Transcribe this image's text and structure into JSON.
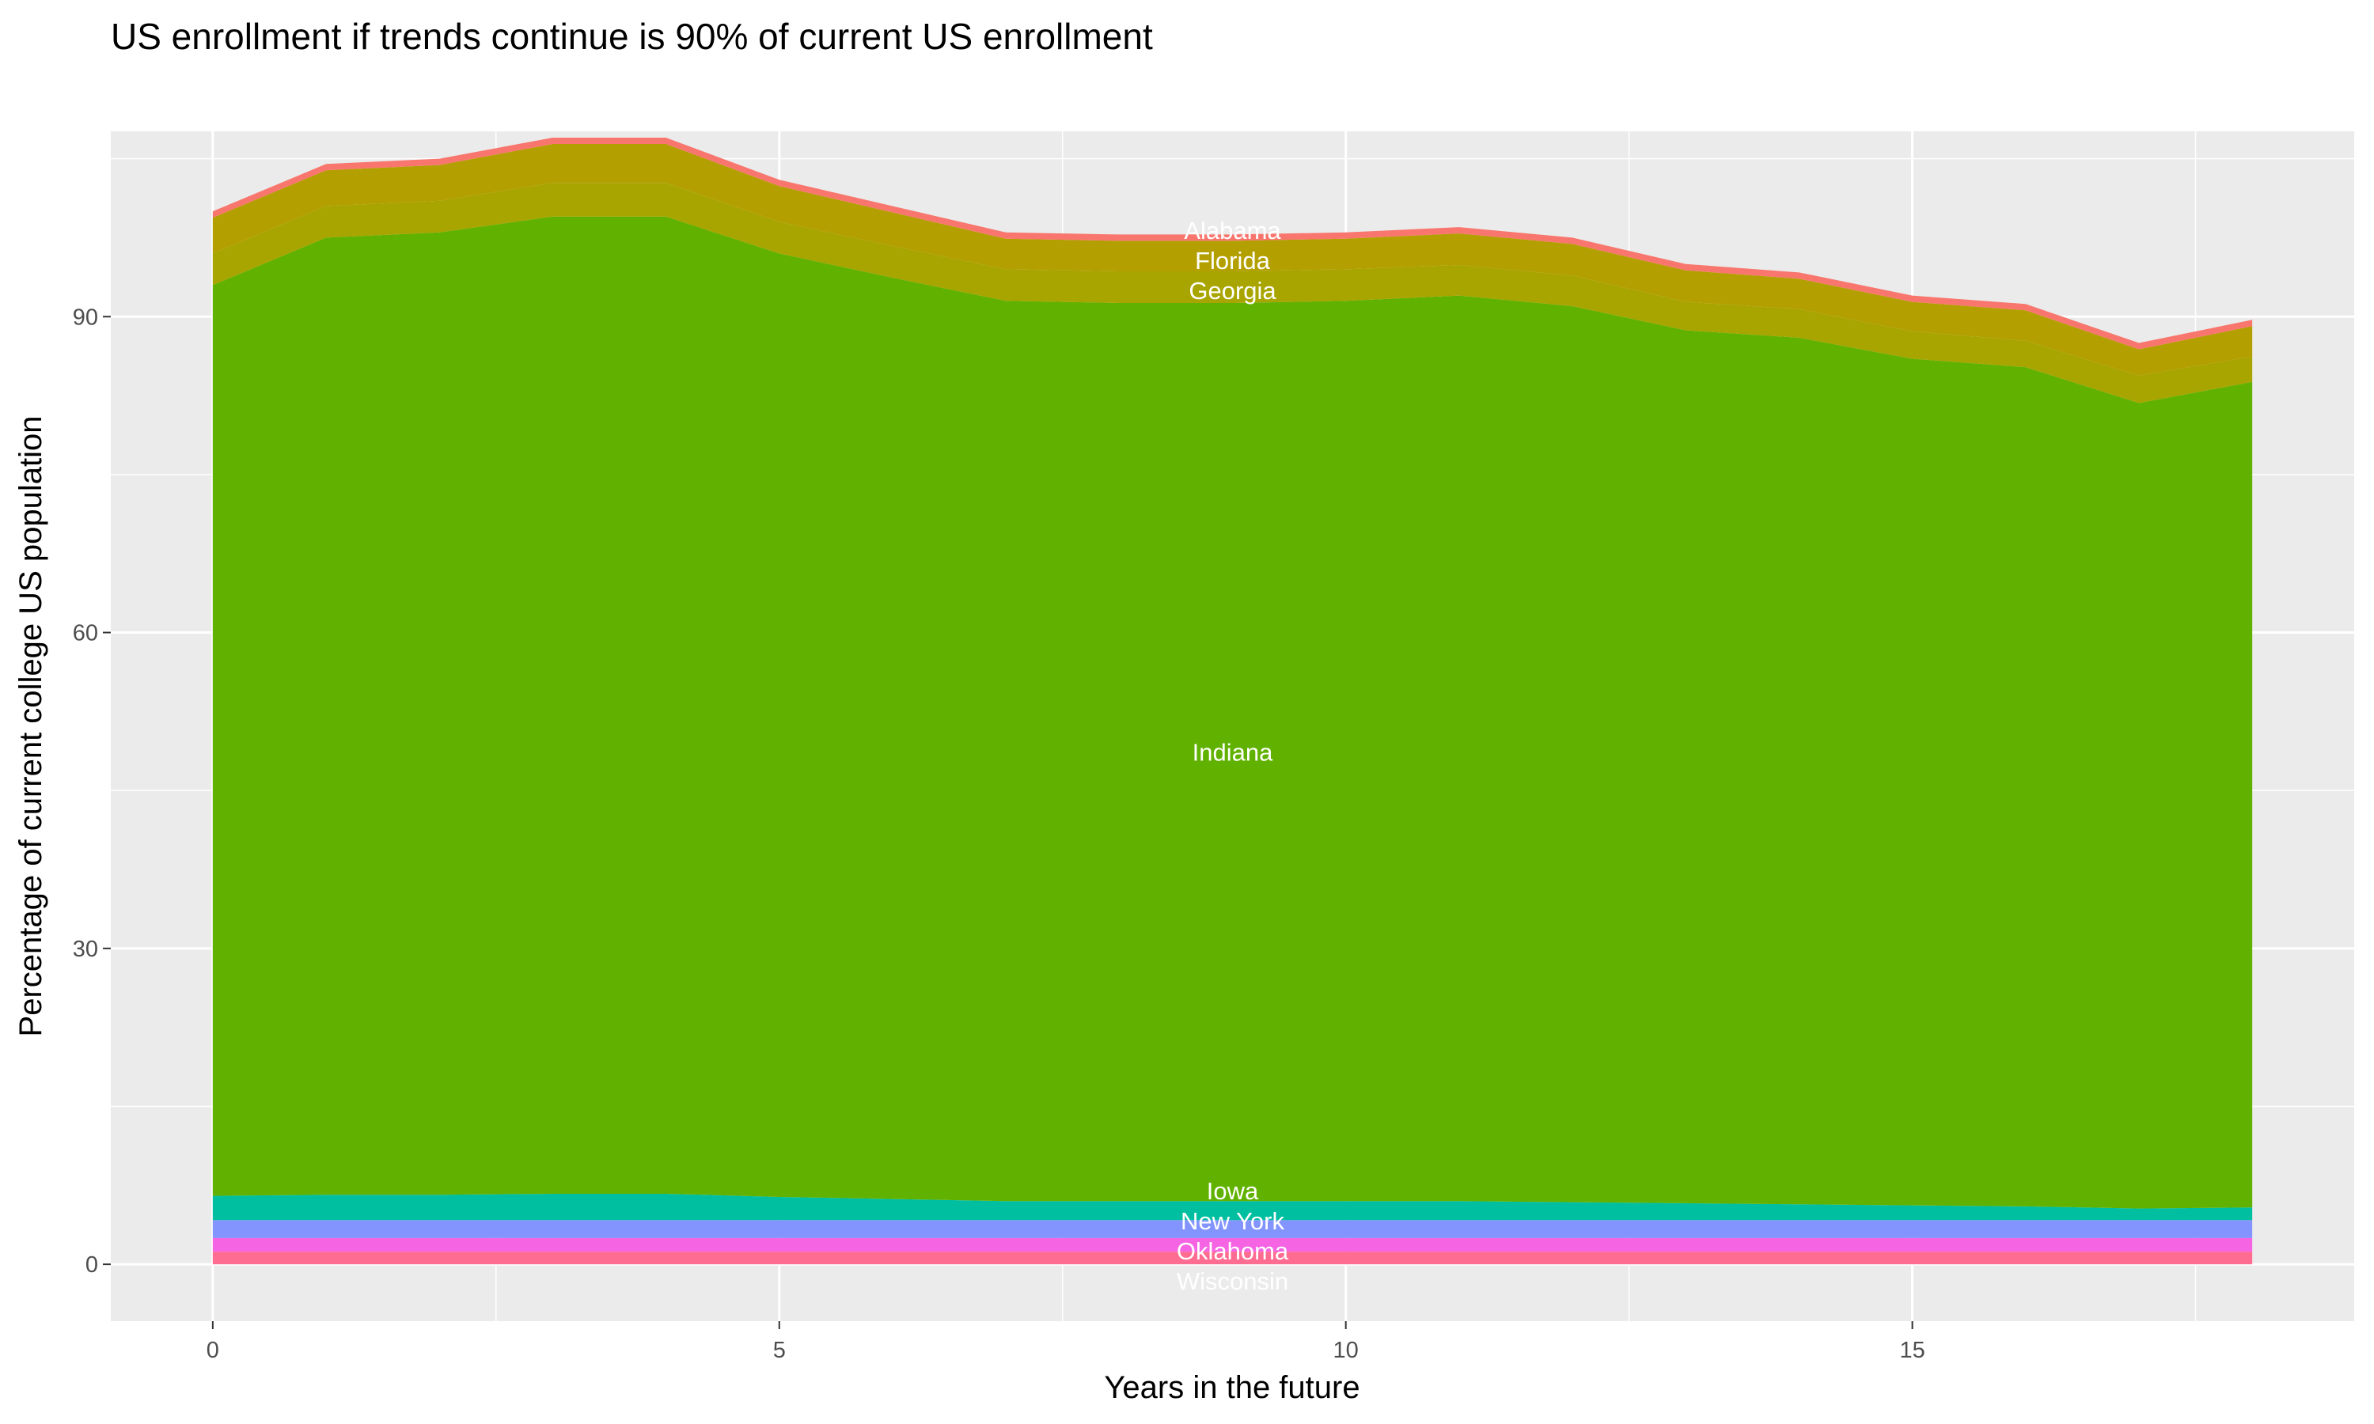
{
  "chart_data": {
    "type": "area",
    "stacked": true,
    "title": "US enrollment if trends continue is 90% of current US enrollment",
    "xlabel": "Years in the future",
    "ylabel": "Percentage of current college US population",
    "x": [
      0,
      1,
      2,
      3,
      4,
      5,
      6,
      7,
      8,
      9,
      10,
      11,
      12,
      13,
      14,
      15,
      16,
      17,
      18
    ],
    "xlim": [
      -0.9,
      18.9
    ],
    "ylim": [
      -5.4,
      107.6
    ],
    "xticks": [
      0,
      5,
      10,
      15
    ],
    "yticks": [
      0,
      30,
      60,
      90
    ],
    "grid": true,
    "legend": "none",
    "label_x": 9,
    "background": "#EBEBEB",
    "series": [
      {
        "name": "Wisconsin",
        "color": "#FF6C91",
        "values": [
          1.2,
          1.2,
          1.2,
          1.2,
          1.2,
          1.2,
          1.2,
          1.2,
          1.2,
          1.2,
          1.2,
          1.2,
          1.2,
          1.2,
          1.2,
          1.2,
          1.2,
          1.2,
          1.2
        ]
      },
      {
        "name": "Oklahoma",
        "color": "#F564E3",
        "values": [
          1.3,
          1.3,
          1.3,
          1.3,
          1.3,
          1.3,
          1.3,
          1.3,
          1.3,
          1.3,
          1.3,
          1.3,
          1.3,
          1.3,
          1.3,
          1.3,
          1.3,
          1.3,
          1.3
        ]
      },
      {
        "name": "New York",
        "color": "#8494FF",
        "values": [
          1.7,
          1.7,
          1.7,
          1.7,
          1.7,
          1.7,
          1.7,
          1.7,
          1.7,
          1.7,
          1.7,
          1.7,
          1.7,
          1.7,
          1.7,
          1.7,
          1.7,
          1.7,
          1.7
        ]
      },
      {
        "name": "Iowa",
        "color": "#00BFA0",
        "values": [
          2.3,
          2.4,
          2.4,
          2.5,
          2.5,
          2.2,
          2.0,
          1.8,
          1.8,
          1.8,
          1.8,
          1.8,
          1.7,
          1.6,
          1.5,
          1.4,
          1.3,
          1.1,
          1.2
        ]
      },
      {
        "name": "Indiana",
        "color": "#61B200",
        "values": [
          86.5,
          90.9,
          91.4,
          92.8,
          92.8,
          89.6,
          87.5,
          85.5,
          85.3,
          85.3,
          85.5,
          86.0,
          85.1,
          82.9,
          82.3,
          80.4,
          79.7,
          76.5,
          78.4
        ]
      },
      {
        "name": "Georgia",
        "color": "#A8A400",
        "values": [
          3.0,
          3.0,
          3.0,
          3.2,
          3.2,
          3.0,
          3.0,
          3.0,
          3.0,
          3.0,
          3.0,
          2.9,
          2.9,
          2.7,
          2.7,
          2.6,
          2.5,
          2.6,
          2.4
        ]
      },
      {
        "name": "Florida",
        "color": "#B3A000",
        "values": [
          3.4,
          3.4,
          3.4,
          3.7,
          3.7,
          3.4,
          3.2,
          2.9,
          2.9,
          2.9,
          2.9,
          3.0,
          3.0,
          3.0,
          2.9,
          2.8,
          2.9,
          2.5,
          2.9
        ]
      },
      {
        "name": "Alabama",
        "color": "#F8766D",
        "values": [
          0.6,
          0.6,
          0.6,
          0.6,
          0.6,
          0.6,
          0.6,
          0.6,
          0.6,
          0.6,
          0.6,
          0.6,
          0.6,
          0.6,
          0.6,
          0.6,
          0.6,
          0.6,
          0.6
        ]
      }
    ]
  }
}
